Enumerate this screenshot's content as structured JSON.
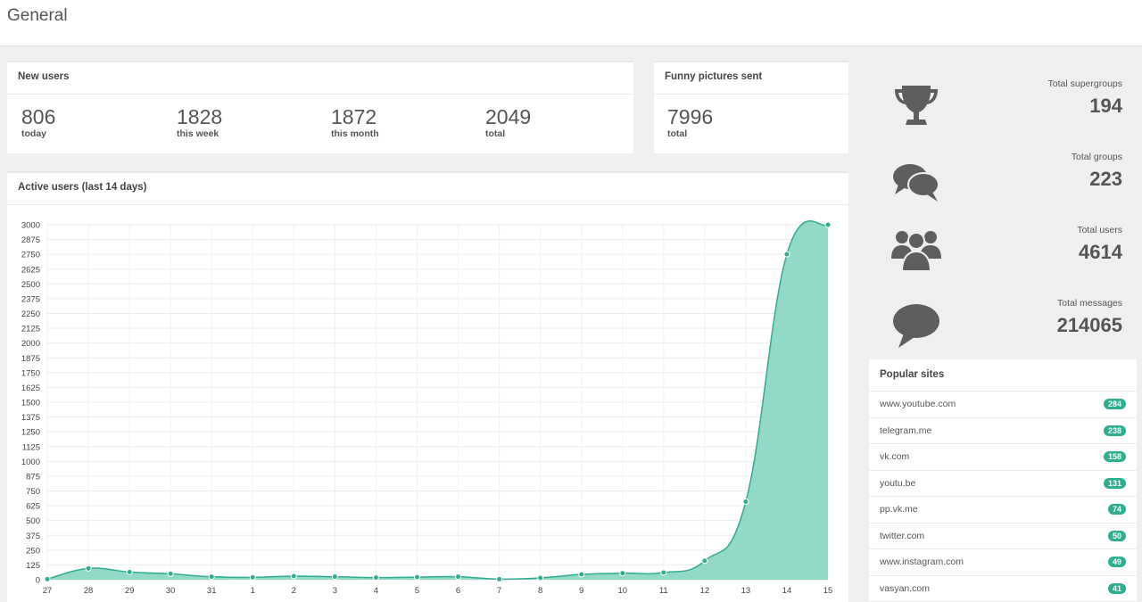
{
  "page": {
    "title": "General"
  },
  "new_users": {
    "title": "New users",
    "stats": [
      {
        "value": "806",
        "label": "today"
      },
      {
        "value": "1828",
        "label": "this week"
      },
      {
        "value": "1872",
        "label": "this month"
      },
      {
        "value": "2049",
        "label": "total"
      }
    ]
  },
  "funny_pictures": {
    "title": "Funny pictures sent",
    "value": "7996",
    "label": "total"
  },
  "active_users": {
    "title": "Active users (last 14 days)"
  },
  "summary": [
    {
      "icon": "trophy-icon",
      "label": "Total supergroups",
      "value": "194"
    },
    {
      "icon": "chat-bubbles-icon",
      "label": "Total groups",
      "value": "223"
    },
    {
      "icon": "users-icon",
      "label": "Total users",
      "value": "4614"
    },
    {
      "icon": "speech-bubble-icon",
      "label": "Total messages",
      "value": "214065"
    }
  ],
  "popular_sites": {
    "title": "Popular sites",
    "items": [
      {
        "site": "www.youtube.com",
        "count": "284"
      },
      {
        "site": "telegram.me",
        "count": "238"
      },
      {
        "site": "vk.com",
        "count": "158"
      },
      {
        "site": "youtu.be",
        "count": "131"
      },
      {
        "site": "pp.vk.me",
        "count": "74"
      },
      {
        "site": "twitter.com",
        "count": "50"
      },
      {
        "site": "www.instagram.com",
        "count": "49"
      },
      {
        "site": "vasyan.com",
        "count": "41"
      }
    ]
  },
  "colors": {
    "accent": "#2cae8f",
    "fill": "#7fd3bd",
    "icon": "#5e5e5e"
  },
  "chart_data": {
    "type": "area",
    "x": [
      "27",
      "28",
      "29",
      "30",
      "31",
      "1",
      "2",
      "3",
      "4",
      "5",
      "6",
      "7",
      "8",
      "9",
      "10",
      "11",
      "12",
      "13",
      "14",
      "15"
    ],
    "values": [
      5,
      95,
      65,
      50,
      25,
      20,
      30,
      25,
      18,
      22,
      25,
      5,
      15,
      45,
      55,
      60,
      160,
      660,
      2750,
      3000
    ],
    "yticks": [
      0,
      125,
      250,
      375,
      500,
      625,
      750,
      875,
      1000,
      1125,
      1250,
      1375,
      1500,
      1625,
      1750,
      1875,
      2000,
      2125,
      2250,
      2375,
      2500,
      2625,
      2750,
      2875,
      3000
    ],
    "ylim": [
      0,
      3000
    ],
    "grid": true
  }
}
